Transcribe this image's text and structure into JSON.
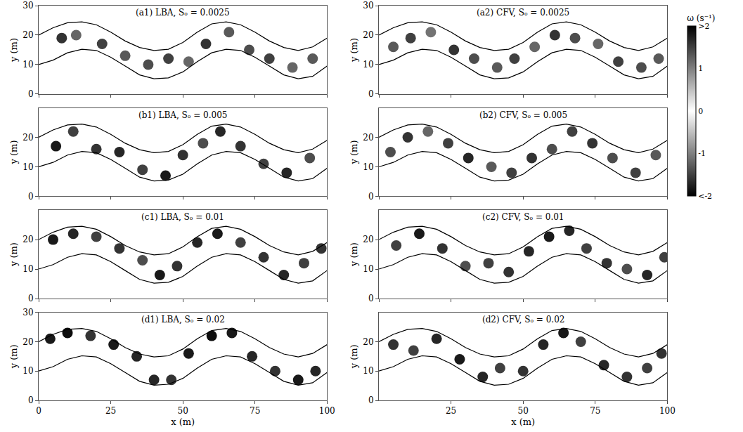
{
  "channel_banks": {
    "color": "#000000",
    "x": [
      0,
      5,
      10,
      15,
      20,
      25,
      30,
      35,
      40,
      45,
      50,
      55,
      60,
      65,
      70,
      75,
      80,
      85,
      90,
      95,
      100
    ],
    "upper": [
      20,
      22.5,
      24.2,
      24.5,
      23.5,
      21,
      18,
      15.8,
      14.8,
      15.2,
      17.5,
      21,
      23.8,
      24.5,
      23.5,
      21,
      18,
      15.8,
      14.8,
      16,
      19
    ],
    "lower": [
      10,
      11.5,
      14,
      15.2,
      14.8,
      12.5,
      9.5,
      6.5,
      5.2,
      5.5,
      7.5,
      11,
      14,
      15.2,
      14.8,
      12.5,
      9.5,
      6.5,
      5.2,
      6,
      9.5
    ]
  },
  "colorbar": {
    "title": "ω (s⁻¹)",
    "range": [
      -2,
      2
    ],
    "colors": [
      "#000000",
      "#ffffff",
      "#000000"
    ],
    "ticks": [
      {
        "value": 2,
        "label": ">2"
      },
      1,
      0,
      -1,
      {
        "value": -2,
        "label": "<-2"
      }
    ]
  },
  "chart_data": [
    {
      "type": "scatter",
      "title": "(a1) LBA, Sₒ = 0.0025",
      "y_label": "y (m)",
      "xlim": [
        0,
        100
      ],
      "ylim": [
        0,
        30
      ],
      "xticks": [
        0,
        25,
        50,
        75,
        100
      ],
      "yticks": [
        0,
        10,
        20,
        30
      ],
      "tick_labels": "y",
      "marker": "circle",
      "vortices": {
        "x": [
          8,
          13,
          22,
          30,
          38,
          45,
          52,
          58,
          66,
          73,
          80,
          88,
          95
        ],
        "y": [
          19,
          20,
          17,
          13,
          10,
          12,
          11,
          17,
          21,
          15,
          12,
          9,
          12
        ],
        "omega": [
          -1.6,
          1.2,
          -1.5,
          1.3,
          -1.4,
          1.5,
          -1.2,
          1.6,
          -1.3,
          1.4,
          -1.5,
          1.2,
          -1.3
        ]
      }
    },
    {
      "type": "scatter",
      "title": "(a2) CFV, Sₒ = 0.0025",
      "y_label": "y (m)",
      "xlim": [
        0,
        100
      ],
      "ylim": [
        0,
        30
      ],
      "xticks": [
        0,
        25,
        50,
        75,
        100
      ],
      "yticks": [
        0,
        10,
        20,
        30
      ],
      "tick_labels": "y",
      "marker": "circle",
      "vortices": {
        "x": [
          5,
          11,
          18,
          26,
          33,
          41,
          47,
          54,
          61,
          68,
          76,
          83,
          91,
          97
        ],
        "y": [
          16,
          19,
          21,
          15,
          12,
          9,
          12,
          16,
          20,
          19,
          17,
          11,
          9,
          12
        ],
        "omega": [
          -1.3,
          1.5,
          -1.1,
          1.6,
          -1.4,
          1.3,
          -1.5,
          1.2,
          -1.6,
          1.4,
          -1.2,
          1.5,
          -1.4,
          1.3
        ]
      }
    },
    {
      "type": "scatter",
      "title": "(b1) LBA, Sₒ = 0.005",
      "y_label": "y (m)",
      "xlim": [
        0,
        100
      ],
      "ylim": [
        0,
        30
      ],
      "xticks": [
        0,
        25,
        50,
        75,
        100
      ],
      "yticks": [
        0,
        10,
        20
      ],
      "tick_labels": "y",
      "marker": "circle",
      "vortices": {
        "x": [
          6,
          12,
          20,
          28,
          36,
          44,
          50,
          57,
          63,
          70,
          78,
          86,
          94
        ],
        "y": [
          17,
          22,
          16,
          15,
          9,
          7,
          14,
          18,
          22,
          17,
          11,
          8,
          13
        ],
        "omega": [
          1.8,
          -1.5,
          1.6,
          -1.7,
          1.5,
          -1.8,
          1.6,
          -1.4,
          1.7,
          -1.6,
          1.5,
          -1.7,
          1.4
        ]
      }
    },
    {
      "type": "scatter",
      "title": "(b2) CFV, Sₒ = 0.005",
      "y_label": "y (m)",
      "xlim": [
        0,
        100
      ],
      "ylim": [
        0,
        30
      ],
      "xticks": [
        0,
        25,
        50,
        75,
        100
      ],
      "yticks": [
        0,
        10,
        20
      ],
      "tick_labels": "y",
      "marker": "circle",
      "vortices": {
        "x": [
          4,
          10,
          17,
          24,
          31,
          39,
          46,
          53,
          60,
          67,
          74,
          81,
          89,
          96
        ],
        "y": [
          15,
          20,
          22,
          18,
          13,
          10,
          8,
          13,
          16,
          22,
          18,
          13,
          8,
          14
        ],
        "omega": [
          1.4,
          -1.6,
          1.2,
          -1.5,
          1.7,
          -1.3,
          1.5,
          -1.6,
          1.4,
          -1.5,
          1.6,
          -1.4,
          1.5,
          -1.3
        ]
      }
    },
    {
      "type": "scatter",
      "title": "(c1) LBA, Sₒ = 0.01",
      "y_label": "y (m)",
      "xlim": [
        0,
        100
      ],
      "ylim": [
        0,
        30
      ],
      "xticks": [
        0,
        25,
        50,
        75,
        100
      ],
      "yticks": [
        0,
        10,
        20
      ],
      "tick_labels": "y",
      "marker": "circle",
      "vortices": {
        "x": [
          5,
          12,
          20,
          28,
          36,
          42,
          48,
          55,
          62,
          70,
          78,
          85,
          92,
          98
        ],
        "y": [
          20,
          22,
          21,
          17,
          13,
          8,
          11,
          19,
          22,
          19,
          14,
          8,
          12,
          17
        ],
        "omega": [
          -1.8,
          -1.7,
          1.5,
          -1.6,
          1.4,
          -1.8,
          1.6,
          -1.7,
          -1.8,
          1.5,
          -1.6,
          -1.7,
          1.5,
          -1.6
        ]
      }
    },
    {
      "type": "scatter",
      "title": "(c2) CFV, Sₒ = 0.01",
      "y_label": "y (m)",
      "xlim": [
        0,
        100
      ],
      "ylim": [
        0,
        30
      ],
      "xticks": [
        0,
        25,
        50,
        75,
        100
      ],
      "yticks": [
        0,
        10,
        20
      ],
      "tick_labels": "y",
      "marker": "circle",
      "vortices": {
        "x": [
          6,
          14,
          22,
          30,
          38,
          45,
          52,
          59,
          66,
          72,
          79,
          86,
          93,
          99
        ],
        "y": [
          18,
          22,
          17,
          11,
          12,
          9,
          16,
          21,
          23,
          17,
          12,
          10,
          8,
          14
        ],
        "omega": [
          -1.5,
          -1.8,
          1.6,
          -1.4,
          1.5,
          -1.6,
          1.7,
          -1.8,
          -1.7,
          1.5,
          -1.6,
          1.4,
          -1.7,
          1.5
        ]
      }
    },
    {
      "type": "scatter",
      "title": "(d1) LBA, Sₒ = 0.02",
      "x_label": "x (m)",
      "y_label": "y (m)",
      "xlim": [
        0,
        100
      ],
      "ylim": [
        0,
        30
      ],
      "xticks": [
        0,
        25,
        50,
        75,
        100
      ],
      "yticks": [
        0,
        10,
        20,
        30
      ],
      "marker": "circle",
      "vortices": {
        "x": [
          4,
          10,
          18,
          26,
          34,
          40,
          46,
          52,
          60,
          67,
          74,
          82,
          90,
          96
        ],
        "y": [
          21,
          23,
          22,
          19,
          15,
          7,
          7,
          16,
          22,
          23,
          15,
          10,
          7,
          10
        ],
        "omega": [
          -1.8,
          -1.9,
          1.6,
          -1.8,
          -1.7,
          1.7,
          1.6,
          -1.8,
          -1.9,
          -1.8,
          1.7,
          1.6,
          1.8,
          -1.7
        ]
      }
    },
    {
      "type": "scatter",
      "title": "(d2) CFV, Sₒ = 0.02",
      "x_label": "x (m)",
      "y_label": "y (m)",
      "xlim": [
        0,
        100
      ],
      "ylim": [
        0,
        30
      ],
      "xticks": [
        25,
        50,
        75,
        100
      ],
      "yticks": [
        0,
        10,
        20
      ],
      "marker": "circle",
      "vortices": {
        "x": [
          5,
          12,
          20,
          28,
          36,
          42,
          50,
          57,
          64,
          70,
          78,
          86,
          93,
          98
        ],
        "y": [
          19,
          17,
          21,
          14,
          8,
          11,
          10,
          19,
          23,
          20,
          12,
          8,
          11,
          16
        ],
        "omega": [
          -1.6,
          1.5,
          -1.7,
          1.8,
          -1.7,
          1.5,
          -1.6,
          1.7,
          -1.8,
          1.5,
          -1.7,
          1.6,
          -1.5,
          1.6
        ]
      }
    }
  ]
}
